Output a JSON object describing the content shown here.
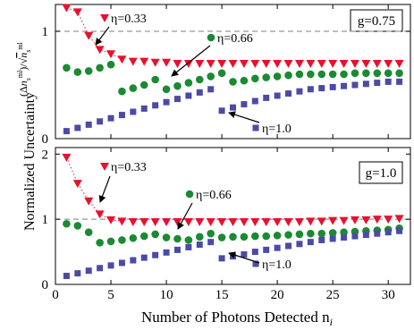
{
  "chart_data": [
    {
      "type": "scatter",
      "panel_label": "g=0.75",
      "xlim": [
        0,
        32
      ],
      "ylim": [
        0,
        1.25
      ],
      "yticks": [
        0,
        1
      ],
      "reference_line_y": 1.0,
      "annotations": [
        "η=0.33",
        "η=0.66",
        "η=1.0"
      ],
      "series": [
        {
          "eta": "0.33",
          "marker": "triangle",
          "color": "#e8112d",
          "x": [
            1,
            2,
            3,
            4,
            5,
            6,
            7,
            8,
            9,
            10,
            11,
            12,
            13,
            14,
            15,
            16,
            17,
            18,
            19,
            20,
            21,
            22,
            23,
            24,
            25,
            26,
            27,
            28,
            29,
            30,
            31,
            32
          ],
          "values": [
            1.22,
            1.18,
            0.96,
            0.83,
            0.79,
            0.74,
            0.72,
            0.72,
            0.71,
            0.71,
            0.7,
            0.7,
            0.7,
            0.7,
            0.7,
            0.7,
            0.7,
            0.7,
            0.7,
            0.7,
            0.7,
            0.7,
            0.7,
            0.7,
            0.7,
            0.7,
            0.7,
            0.7,
            0.7,
            0.7,
            0.7,
            0.7
          ]
        },
        {
          "eta": "0.66",
          "marker": "circle",
          "color": "#1b8a33",
          "x": [
            1,
            2,
            3,
            4,
            5,
            6,
            7,
            8,
            9,
            10,
            11,
            12,
            13,
            14,
            15,
            16,
            17,
            18,
            19,
            20,
            21,
            22,
            23,
            24,
            25,
            26,
            27,
            28,
            29,
            30,
            31,
            32
          ],
          "values": [
            0.66,
            0.62,
            0.63,
            0.66,
            0.69,
            0.44,
            0.47,
            0.5,
            0.55,
            0.46,
            0.49,
            0.52,
            0.55,
            0.58,
            0.61,
            0.53,
            0.54,
            0.56,
            0.57,
            0.58,
            0.59,
            0.6,
            0.6,
            0.6,
            0.6,
            0.6,
            0.61,
            0.61,
            0.61,
            0.61,
            0.61,
            0.61
          ]
        },
        {
          "eta": "1.0",
          "marker": "square",
          "color": "#4b4ba6",
          "x": [
            1,
            2,
            3,
            4,
            5,
            6,
            7,
            8,
            9,
            10,
            11,
            12,
            13,
            14,
            15,
            16,
            17,
            18,
            19,
            20,
            21,
            22,
            23,
            24,
            25,
            26,
            27,
            28,
            29,
            30,
            31,
            32
          ],
          "values": [
            0.07,
            0.1,
            0.13,
            0.16,
            0.19,
            0.22,
            0.25,
            0.28,
            0.31,
            0.34,
            0.37,
            0.4,
            0.43,
            0.46,
            0.26,
            0.29,
            0.32,
            0.35,
            0.38,
            0.4,
            0.42,
            0.44,
            0.46,
            0.47,
            0.48,
            0.49,
            0.5,
            0.51,
            0.52,
            0.53,
            0.53,
            0.54
          ]
        }
      ]
    },
    {
      "type": "scatter",
      "panel_label": "g=1.0",
      "xlim": [
        0,
        32
      ],
      "xticks": [
        0,
        5,
        10,
        15,
        20,
        25,
        30
      ],
      "ylim": [
        0,
        2.1
      ],
      "yticks": [
        0,
        1,
        2
      ],
      "reference_line_y": 1.0,
      "annotations": [
        "η=0.33",
        "η=0.66",
        "η=1.0"
      ],
      "series": [
        {
          "eta": "0.33",
          "marker": "triangle",
          "color": "#e8112d",
          "x": [
            1,
            2,
            3,
            4,
            5,
            6,
            7,
            8,
            9,
            10,
            11,
            12,
            13,
            14,
            15,
            16,
            17,
            18,
            19,
            20,
            21,
            22,
            23,
            24,
            25,
            26,
            27,
            28,
            29,
            30,
            31,
            32
          ],
          "values": [
            1.95,
            1.55,
            1.28,
            1.08,
            0.99,
            0.97,
            0.96,
            0.96,
            0.96,
            0.96,
            0.96,
            0.96,
            0.96,
            0.96,
            0.96,
            0.96,
            0.96,
            0.96,
            0.96,
            0.96,
            0.96,
            0.96,
            0.97,
            0.97,
            0.98,
            0.98,
            0.99,
            0.99,
            1.0,
            1.0,
            1.01,
            1.02
          ]
        },
        {
          "eta": "0.66",
          "marker": "circle",
          "color": "#1b8a33",
          "x": [
            1,
            2,
            3,
            4,
            5,
            6,
            7,
            8,
            9,
            10,
            11,
            12,
            13,
            14,
            15,
            16,
            17,
            18,
            19,
            20,
            21,
            22,
            23,
            24,
            25,
            26,
            27,
            28,
            29,
            30,
            31,
            32
          ],
          "values": [
            0.93,
            0.9,
            0.8,
            0.64,
            0.66,
            0.68,
            0.71,
            0.74,
            0.77,
            0.72,
            0.7,
            0.68,
            0.73,
            0.78,
            0.72,
            0.73,
            0.73,
            0.74,
            0.74,
            0.75,
            0.76,
            0.77,
            0.78,
            0.78,
            0.79,
            0.8,
            0.81,
            0.82,
            0.83,
            0.84,
            0.86,
            0.88
          ]
        },
        {
          "eta": "1.0",
          "marker": "square",
          "color": "#4b4ba6",
          "x": [
            1,
            2,
            3,
            4,
            5,
            6,
            7,
            8,
            9,
            10,
            11,
            12,
            13,
            14,
            15,
            16,
            17,
            18,
            19,
            20,
            21,
            22,
            23,
            24,
            25,
            26,
            27,
            28,
            29,
            30,
            31,
            32
          ],
          "values": [
            0.13,
            0.17,
            0.21,
            0.25,
            0.29,
            0.33,
            0.37,
            0.41,
            0.45,
            0.49,
            0.53,
            0.57,
            0.61,
            0.65,
            0.4,
            0.43,
            0.46,
            0.5,
            0.53,
            0.56,
            0.59,
            0.62,
            0.65,
            0.68,
            0.7,
            0.72,
            0.74,
            0.76,
            0.78,
            0.8,
            0.82,
            0.83
          ]
        }
      ]
    }
  ],
  "axes": {
    "xlabel": "Number of Photons Detected n",
    "xlabel_sub": "i",
    "ylabel": "Normalized Uncertainty",
    "ylabel_expr": "(Δn_s^ml)/√(n_s^ml)"
  }
}
